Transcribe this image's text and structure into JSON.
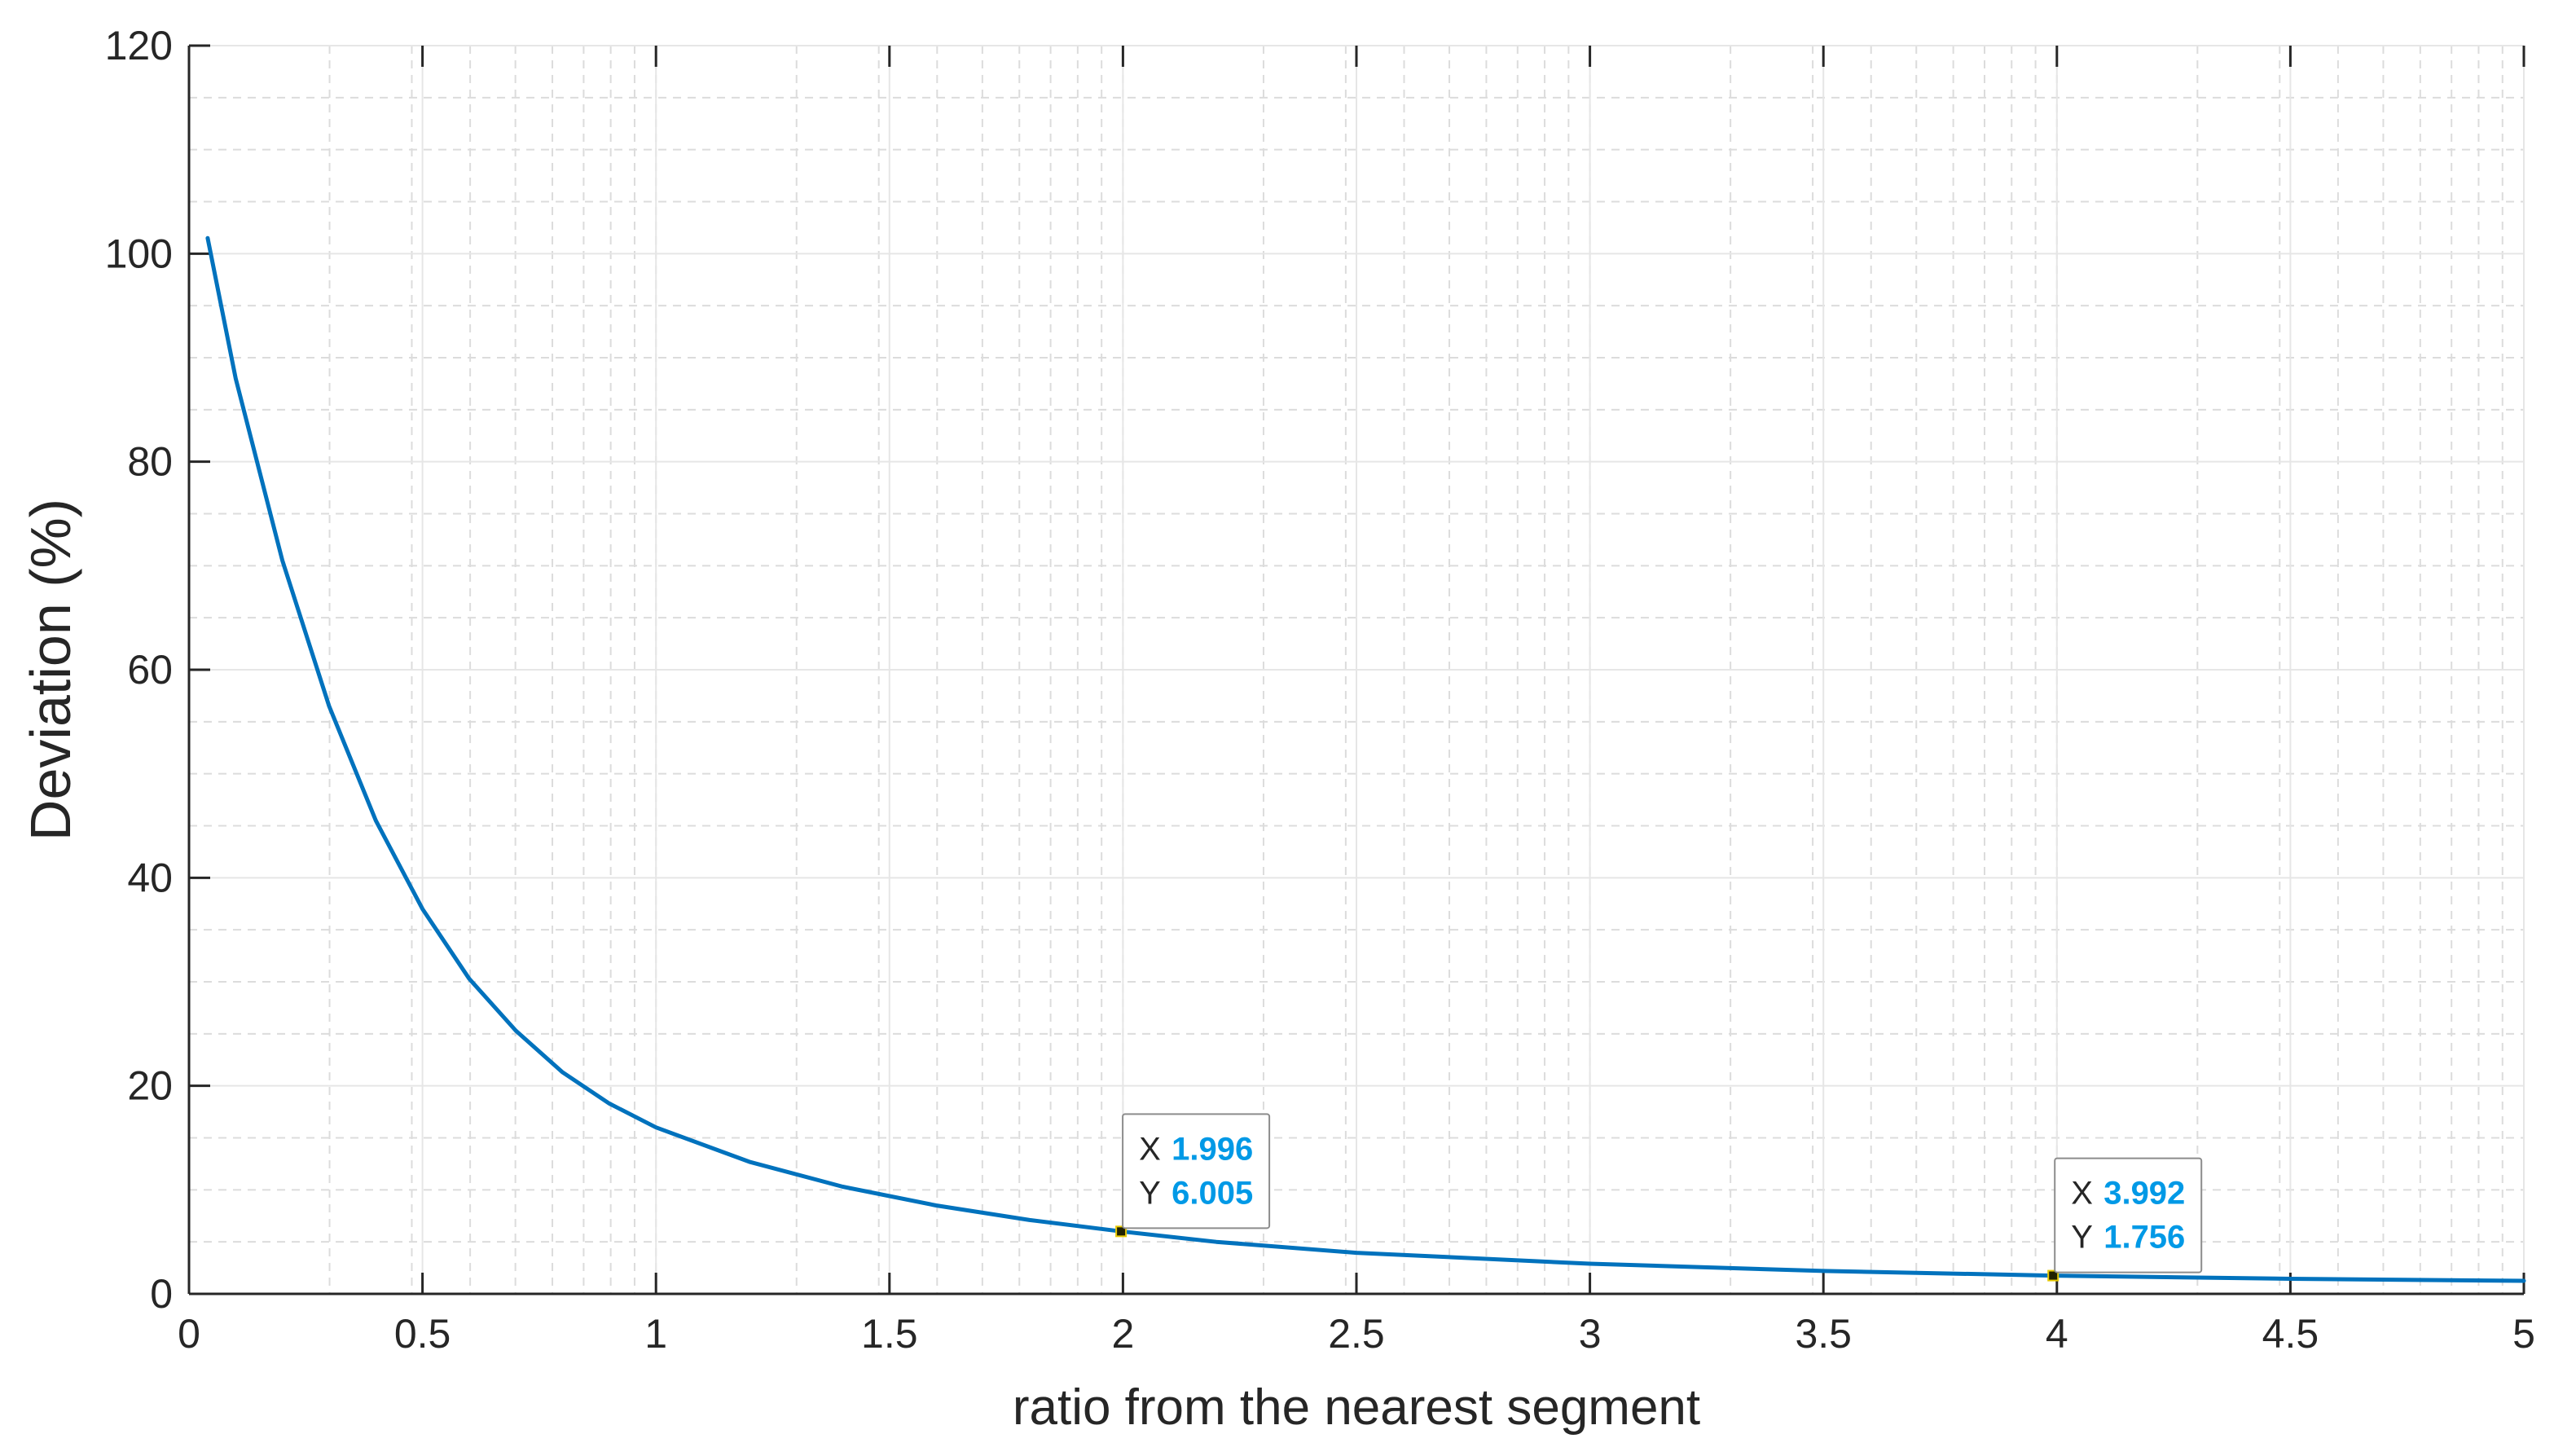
{
  "chart_data": {
    "type": "line",
    "xlabel": "ratio from the nearest segment",
    "ylabel": "Deviation (%)",
    "xlim": [
      0,
      5
    ],
    "ylim": [
      0,
      120
    ],
    "x_ticks": [
      0,
      0.5,
      1,
      1.5,
      2,
      2.5,
      3,
      3.5,
      4,
      4.5,
      5
    ],
    "x_tick_labels": [
      "0",
      "0.5",
      "1",
      "1.5",
      "2",
      "2.5",
      "3",
      "3.5",
      "4",
      "4.5",
      "5"
    ],
    "y_ticks": [
      0,
      20,
      40,
      60,
      80,
      100,
      120
    ],
    "y_tick_labels": [
      "0",
      "20",
      "40",
      "60",
      "80",
      "100",
      "120"
    ],
    "grid": true,
    "minor_grid": true,
    "colors": {
      "line": "#0072BD",
      "datatip_value": "#0099E6",
      "grid": "#E6E6E6",
      "axis": "#262626"
    },
    "series": [
      {
        "x": [
          0.04,
          0.1,
          0.2,
          0.3,
          0.4,
          0.5,
          0.6,
          0.7,
          0.8,
          0.9,
          1.0,
          1.2,
          1.4,
          1.6,
          1.8,
          1.996,
          2.2,
          2.5,
          3.0,
          3.5,
          3.992,
          4.5,
          5.0
        ],
        "y": [
          101.5,
          88,
          70.5,
          56.5,
          45.5,
          37,
          30.3,
          25.3,
          21.3,
          18.3,
          16,
          12.7,
          10.3,
          8.5,
          7.1,
          6.005,
          5.0,
          3.95,
          2.9,
          2.2,
          1.756,
          1.45,
          1.25
        ]
      }
    ],
    "datatips": [
      {
        "x_key": "X",
        "x_value": "1.996",
        "y_key": "Y",
        "y_value": "6.005",
        "x": 1.996,
        "y": 6.005
      },
      {
        "x_key": "X",
        "x_value": "3.992",
        "y_key": "Y",
        "y_value": "1.756",
        "x": 3.992,
        "y": 1.756
      }
    ]
  }
}
